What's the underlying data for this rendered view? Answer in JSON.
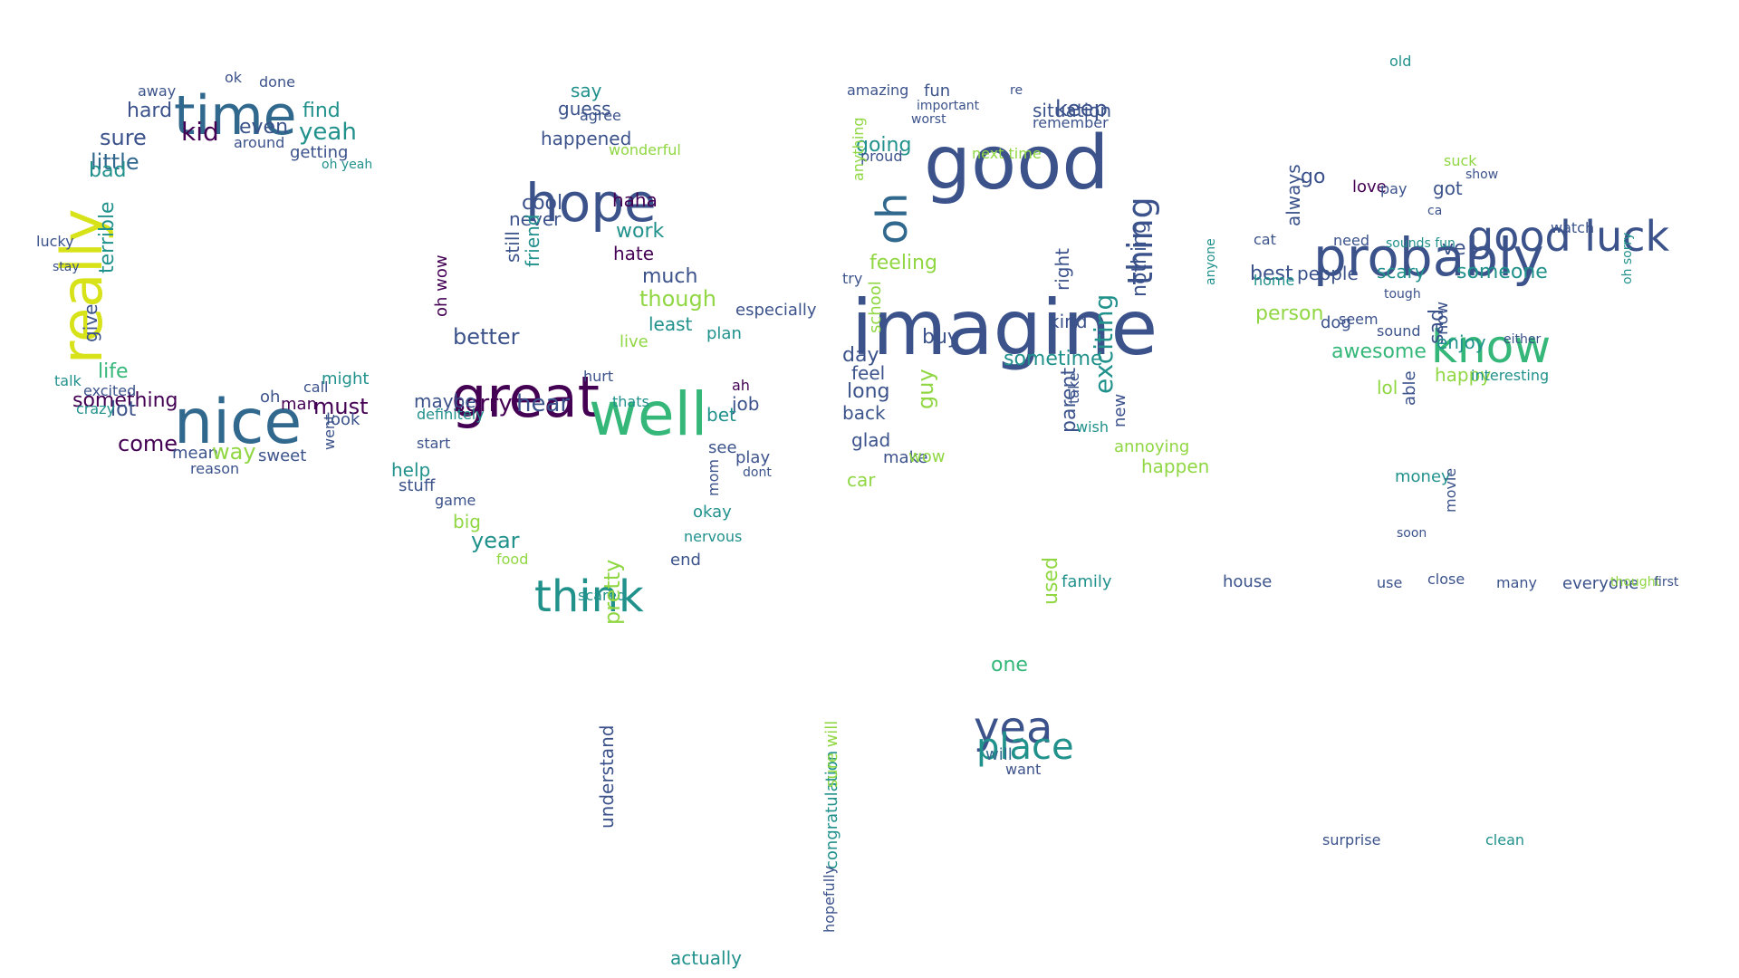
{
  "palette": {
    "dark_purple": "#440154",
    "indigo": "#3b528b",
    "blue": "#31688e",
    "teal": "#21918c",
    "green": "#35b779",
    "yellow_green": "#90d743",
    "yellow": "#d8e219"
  },
  "words": [
    {
      "text": "time",
      "color": "blue"
    },
    {
      "text": "nice",
      "color": "blue"
    },
    {
      "text": "really",
      "color": "yellow"
    },
    {
      "text": "hard",
      "color": "indigo"
    },
    {
      "text": "kid",
      "color": "dark_purple"
    },
    {
      "text": "even",
      "color": "indigo"
    },
    {
      "text": "sure",
      "color": "indigo"
    },
    {
      "text": "yeah",
      "color": "teal"
    },
    {
      "text": "little",
      "color": "blue"
    },
    {
      "text": "bad",
      "color": "teal"
    },
    {
      "text": "find",
      "color": "teal"
    },
    {
      "text": "around",
      "color": "indigo"
    },
    {
      "text": "getting",
      "color": "indigo"
    },
    {
      "text": "done",
      "color": "indigo"
    },
    {
      "text": "ok",
      "color": "indigo"
    },
    {
      "text": "away",
      "color": "indigo"
    },
    {
      "text": "terrible",
      "color": "teal"
    },
    {
      "text": "give",
      "color": "indigo"
    },
    {
      "text": "lucky",
      "color": "indigo"
    },
    {
      "text": "stay",
      "color": "indigo"
    },
    {
      "text": "life",
      "color": "green"
    },
    {
      "text": "talk",
      "color": "teal"
    },
    {
      "text": "something",
      "color": "dark_purple"
    },
    {
      "text": "lot",
      "color": "indigo"
    },
    {
      "text": "come",
      "color": "dark_purple"
    },
    {
      "text": "crazy",
      "color": "teal"
    },
    {
      "text": "excited",
      "color": "indigo"
    },
    {
      "text": "mean",
      "color": "indigo"
    },
    {
      "text": "way",
      "color": "yellow_green"
    },
    {
      "text": "reason",
      "color": "indigo"
    },
    {
      "text": "sweet",
      "color": "indigo"
    },
    {
      "text": "must",
      "color": "dark_purple"
    },
    {
      "text": "look",
      "color": "indigo"
    },
    {
      "text": "might",
      "color": "teal"
    },
    {
      "text": "call",
      "color": "indigo"
    },
    {
      "text": "man",
      "color": "dark_purple"
    },
    {
      "text": "oh",
      "color": "indigo"
    },
    {
      "text": "went",
      "color": "indigo"
    },
    {
      "text": "oh yeah",
      "color": "teal"
    },
    {
      "text": "hope",
      "color": "indigo"
    },
    {
      "text": "great",
      "color": "dark_purple"
    },
    {
      "text": "well",
      "color": "green"
    },
    {
      "text": "think",
      "color": "teal"
    },
    {
      "text": "say",
      "color": "teal"
    },
    {
      "text": "guess",
      "color": "indigo"
    },
    {
      "text": "agree",
      "color": "indigo"
    },
    {
      "text": "happened",
      "color": "indigo"
    },
    {
      "text": "wonderful",
      "color": "yellow_green"
    },
    {
      "text": "cool",
      "color": "indigo"
    },
    {
      "text": "haha",
      "color": "dark_purple"
    },
    {
      "text": "never",
      "color": "indigo"
    },
    {
      "text": "work",
      "color": "teal"
    },
    {
      "text": "still",
      "color": "indigo"
    },
    {
      "text": "friend",
      "color": "teal"
    },
    {
      "text": "hate",
      "color": "dark_purple"
    },
    {
      "text": "much",
      "color": "indigo"
    },
    {
      "text": "though",
      "color": "yellow_green"
    },
    {
      "text": "least",
      "color": "teal"
    },
    {
      "text": "better",
      "color": "indigo"
    },
    {
      "text": "sorry",
      "color": "dark_purple"
    },
    {
      "text": "hear",
      "color": "indigo"
    },
    {
      "text": "maybe",
      "color": "indigo"
    },
    {
      "text": "definitely",
      "color": "teal"
    },
    {
      "text": "help",
      "color": "teal"
    },
    {
      "text": "start",
      "color": "indigo"
    },
    {
      "text": "stuff",
      "color": "indigo"
    },
    {
      "text": "game",
      "color": "indigo"
    },
    {
      "text": "big",
      "color": "yellow_green"
    },
    {
      "text": "year",
      "color": "teal"
    },
    {
      "text": "food",
      "color": "yellow_green"
    },
    {
      "text": "live",
      "color": "yellow_green"
    },
    {
      "text": "hurt",
      "color": "indigo"
    },
    {
      "text": "thats",
      "color": "teal"
    },
    {
      "text": "plan",
      "color": "teal"
    },
    {
      "text": "job",
      "color": "indigo"
    },
    {
      "text": "bet",
      "color": "teal"
    },
    {
      "text": "see",
      "color": "indigo"
    },
    {
      "text": "play",
      "color": "indigo"
    },
    {
      "text": "okay",
      "color": "teal"
    },
    {
      "text": "nervous",
      "color": "teal"
    },
    {
      "text": "end",
      "color": "indigo"
    },
    {
      "text": "scared",
      "color": "teal"
    },
    {
      "text": "pretty",
      "color": "yellow_green"
    },
    {
      "text": "understand",
      "color": "indigo"
    },
    {
      "text": "actually",
      "color": "teal"
    },
    {
      "text": "oh wow",
      "color": "dark_purple"
    },
    {
      "text": "especially",
      "color": "indigo"
    },
    {
      "text": "ah",
      "color": "dark_purple"
    },
    {
      "text": "dont",
      "color": "indigo"
    },
    {
      "text": "mom",
      "color": "indigo"
    },
    {
      "text": "imagine",
      "color": "indigo"
    },
    {
      "text": "good",
      "color": "indigo"
    },
    {
      "text": "oh",
      "color": "blue"
    },
    {
      "text": "thing",
      "color": "indigo"
    },
    {
      "text": "going",
      "color": "teal"
    },
    {
      "text": "fun",
      "color": "indigo"
    },
    {
      "text": "amazing",
      "color": "indigo"
    },
    {
      "text": "important",
      "color": "indigo"
    },
    {
      "text": "worst",
      "color": "indigo"
    },
    {
      "text": "proud",
      "color": "indigo"
    },
    {
      "text": "next time",
      "color": "yellow_green"
    },
    {
      "text": "remember",
      "color": "indigo"
    },
    {
      "text": "situation",
      "color": "indigo"
    },
    {
      "text": "keep",
      "color": "indigo"
    },
    {
      "text": "re",
      "color": "indigo"
    },
    {
      "text": "nothing",
      "color": "indigo"
    },
    {
      "text": "anything",
      "color": "yellow_green"
    },
    {
      "text": "feeling",
      "color": "yellow_green"
    },
    {
      "text": "try",
      "color": "indigo"
    },
    {
      "text": "buy",
      "color": "indigo"
    },
    {
      "text": "sometime",
      "color": "teal"
    },
    {
      "text": "kind",
      "color": "indigo"
    },
    {
      "text": "right",
      "color": "indigo"
    },
    {
      "text": "day",
      "color": "indigo"
    },
    {
      "text": "feel",
      "color": "indigo"
    },
    {
      "text": "long",
      "color": "indigo"
    },
    {
      "text": "back",
      "color": "indigo"
    },
    {
      "text": "guy",
      "color": "yellow_green"
    },
    {
      "text": "glad",
      "color": "indigo"
    },
    {
      "text": "make",
      "color": "indigo"
    },
    {
      "text": "wow",
      "color": "yellow_green"
    },
    {
      "text": "car",
      "color": "yellow_green"
    },
    {
      "text": "school",
      "color": "yellow_green"
    },
    {
      "text": "exciting",
      "color": "teal"
    },
    {
      "text": "take",
      "color": "indigo"
    },
    {
      "text": "parent",
      "color": "indigo"
    },
    {
      "text": "new",
      "color": "indigo"
    },
    {
      "text": "happen",
      "color": "yellow_green"
    },
    {
      "text": "annoying",
      "color": "yellow_green"
    },
    {
      "text": "wish",
      "color": "teal"
    },
    {
      "text": "used",
      "color": "yellow_green"
    },
    {
      "text": "yea",
      "color": "indigo"
    },
    {
      "text": "place",
      "color": "teal"
    },
    {
      "text": "one",
      "color": "green"
    },
    {
      "text": "will",
      "color": "blue"
    },
    {
      "text": "want",
      "color": "indigo"
    },
    {
      "text": "family",
      "color": "teal"
    },
    {
      "text": "house",
      "color": "indigo"
    },
    {
      "text": "congratulation",
      "color": "teal"
    },
    {
      "text": "sure will",
      "color": "yellow_green"
    },
    {
      "text": "hopefully",
      "color": "indigo"
    },
    {
      "text": "probably",
      "color": "indigo"
    },
    {
      "text": "good luck",
      "color": "indigo"
    },
    {
      "text": "know",
      "color": "green"
    },
    {
      "text": "go",
      "color": "indigo"
    },
    {
      "text": "love",
      "color": "dark_purple"
    },
    {
      "text": "got",
      "color": "indigo"
    },
    {
      "text": "ve",
      "color": "indigo"
    },
    {
      "text": "someone",
      "color": "teal"
    },
    {
      "text": "best",
      "color": "indigo"
    },
    {
      "text": "people",
      "color": "indigo"
    },
    {
      "text": "always",
      "color": "indigo"
    },
    {
      "text": "need",
      "color": "indigo"
    },
    {
      "text": "scary",
      "color": "teal"
    },
    {
      "text": "person",
      "color": "yellow_green"
    },
    {
      "text": "dog",
      "color": "indigo"
    },
    {
      "text": "awesome",
      "color": "green"
    },
    {
      "text": "seem",
      "color": "indigo"
    },
    {
      "text": "sound",
      "color": "indigo"
    },
    {
      "text": "lol",
      "color": "yellow_green"
    },
    {
      "text": "able",
      "color": "indigo"
    },
    {
      "text": "sad",
      "color": "indigo"
    },
    {
      "text": "enjoy",
      "color": "teal"
    },
    {
      "text": "happy",
      "color": "yellow_green"
    },
    {
      "text": "now",
      "color": "indigo"
    },
    {
      "text": "suck",
      "color": "yellow_green"
    },
    {
      "text": "old",
      "color": "teal"
    },
    {
      "text": "money",
      "color": "teal"
    },
    {
      "text": "movie",
      "color": "indigo"
    },
    {
      "text": "soon",
      "color": "indigo"
    },
    {
      "text": "use",
      "color": "indigo"
    },
    {
      "text": "close",
      "color": "indigo"
    },
    {
      "text": "many",
      "color": "indigo"
    },
    {
      "text": "everyone",
      "color": "indigo"
    },
    {
      "text": "thought",
      "color": "yellow_green"
    },
    {
      "text": "first",
      "color": "indigo"
    },
    {
      "text": "home",
      "color": "teal"
    },
    {
      "text": "oh sorry",
      "color": "teal"
    },
    {
      "text": "watch",
      "color": "indigo"
    },
    {
      "text": "interesting",
      "color": "teal"
    },
    {
      "text": "tough",
      "color": "indigo"
    },
    {
      "text": "pay",
      "color": "indigo"
    },
    {
      "text": "cat",
      "color": "indigo"
    },
    {
      "text": "show",
      "color": "indigo"
    },
    {
      "text": "anyone",
      "color": "teal"
    },
    {
      "text": "either",
      "color": "indigo"
    },
    {
      "text": "sounds fun",
      "color": "teal"
    },
    {
      "text": "ca",
      "color": "indigo"
    },
    {
      "text": "surprise",
      "color": "indigo"
    },
    {
      "text": "clean",
      "color": "teal"
    }
  ]
}
